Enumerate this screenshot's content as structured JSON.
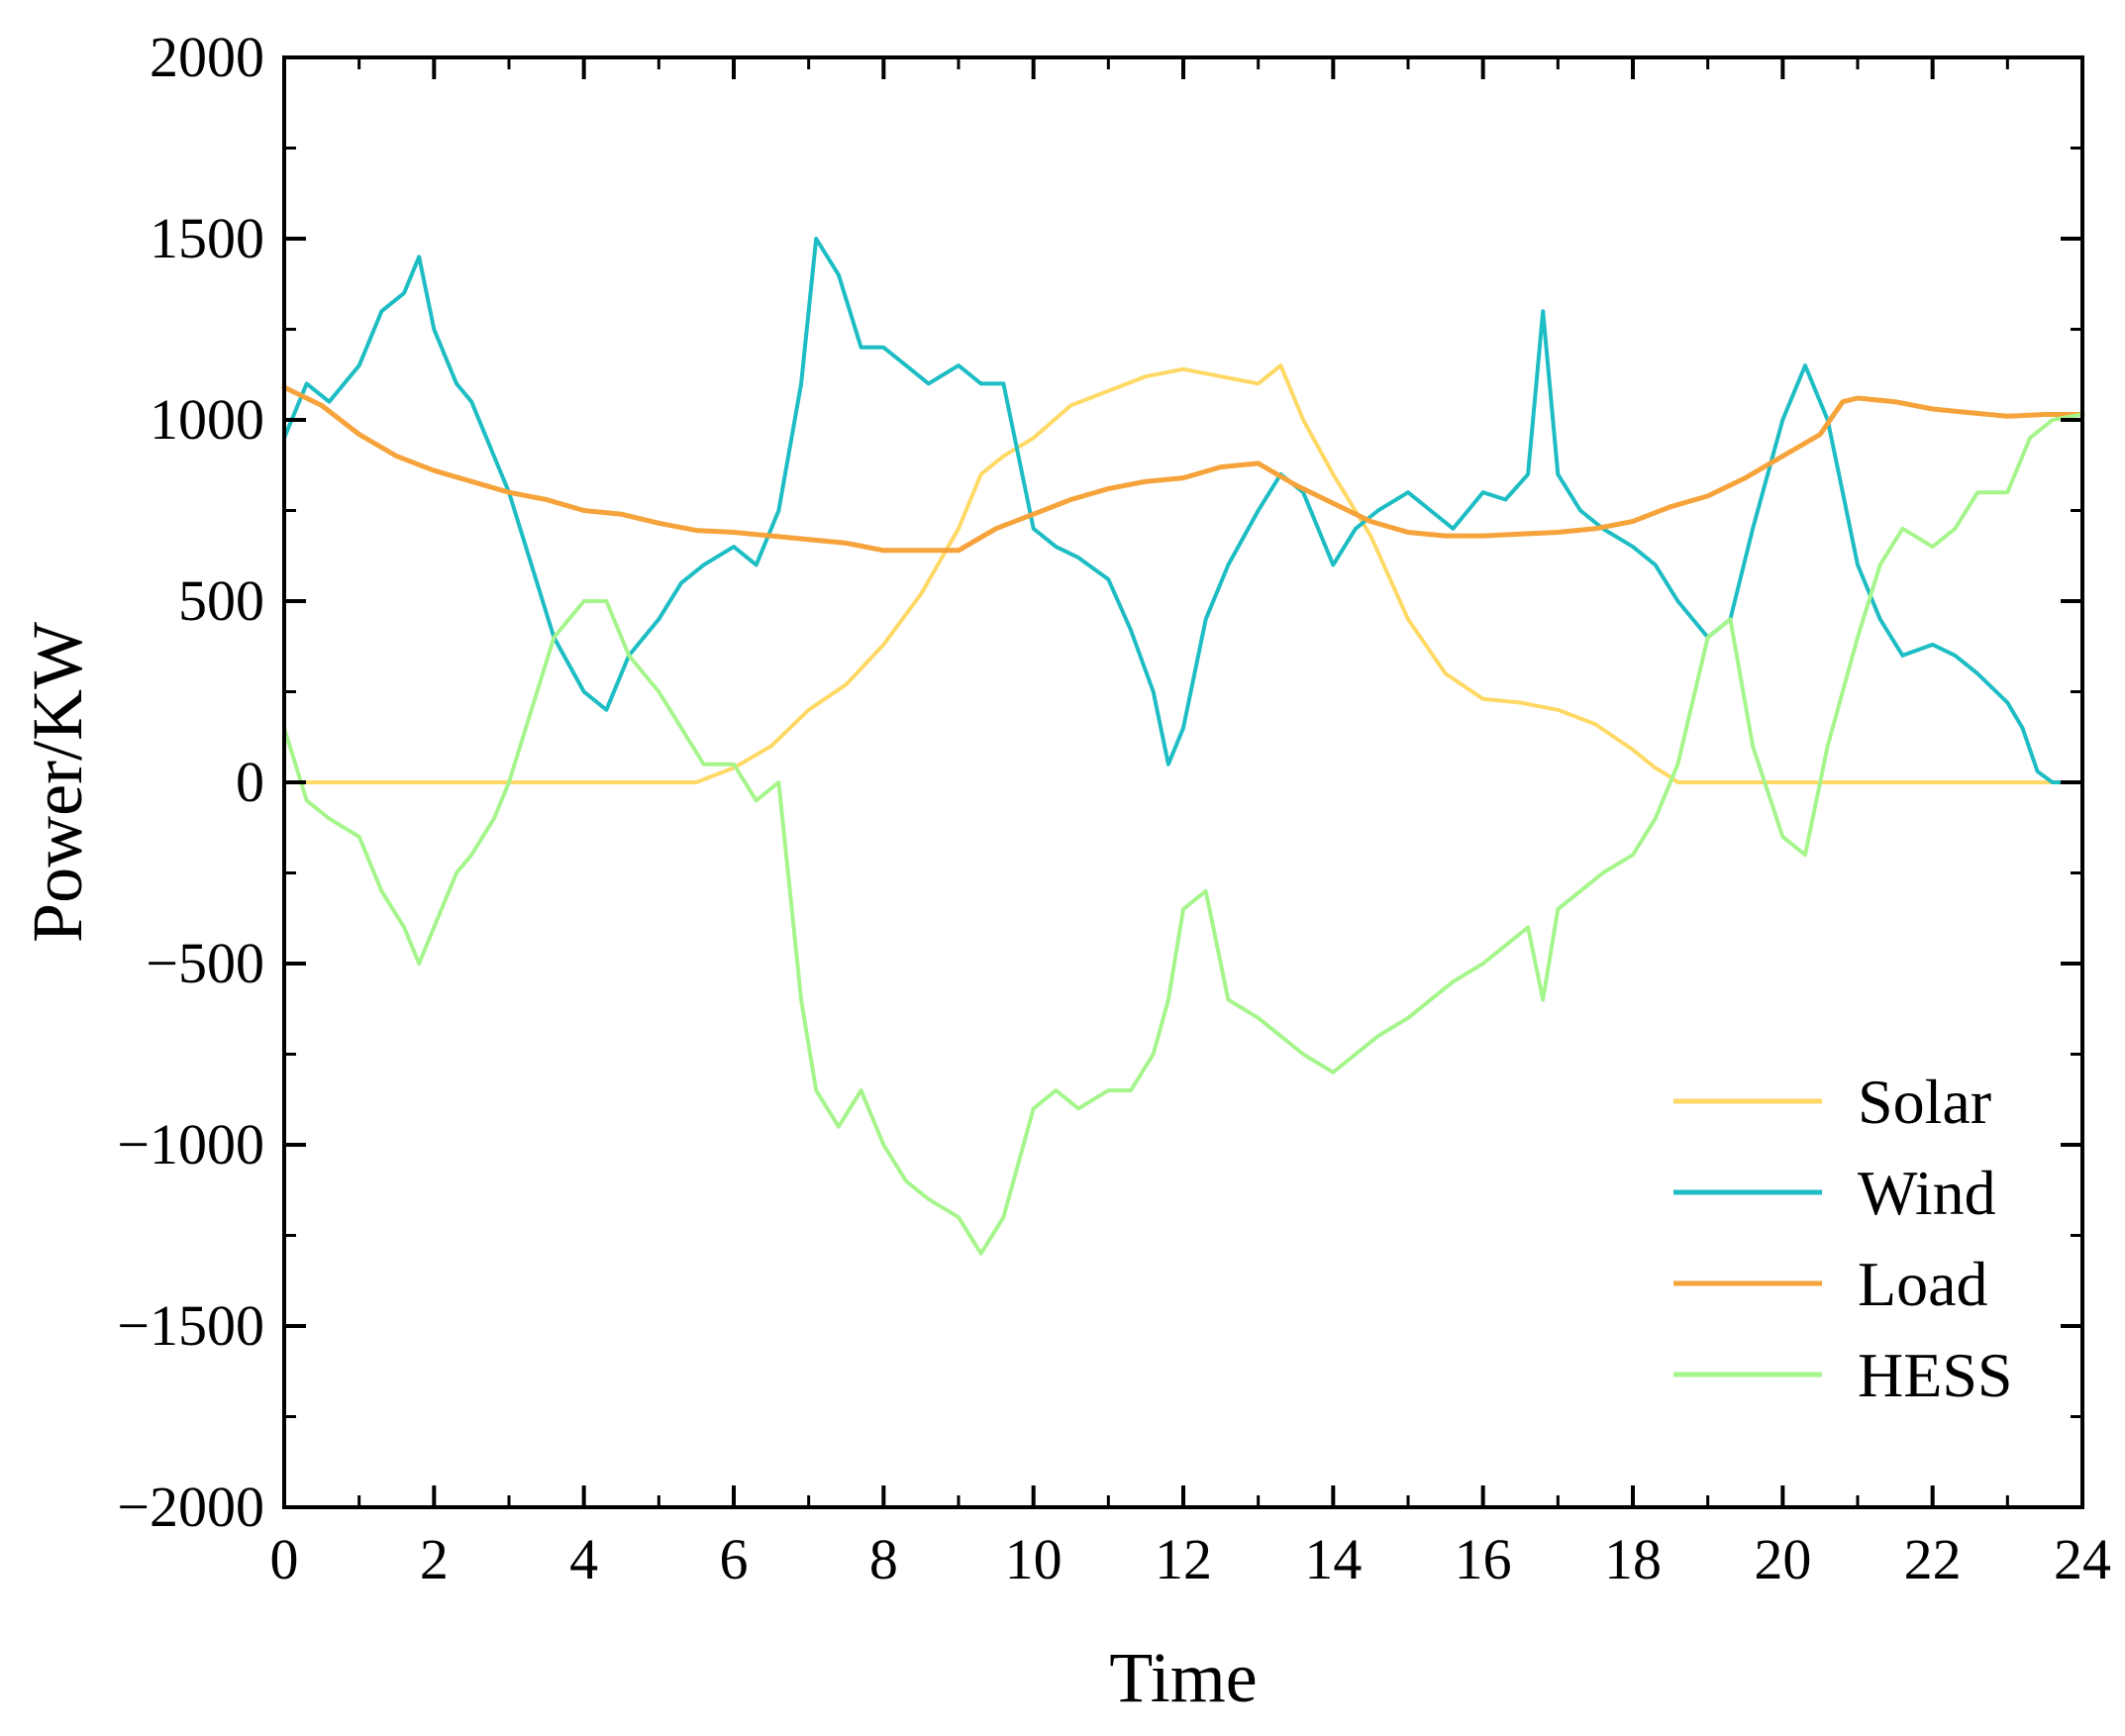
{
  "chart_data": {
    "type": "line",
    "title": "",
    "xlabel": "Time",
    "ylabel": "Power/KW",
    "xlim": [
      0,
      24
    ],
    "ylim": [
      -2000,
      2000
    ],
    "xticks": [
      0,
      2,
      4,
      6,
      8,
      10,
      12,
      14,
      16,
      18,
      20,
      22,
      24
    ],
    "xtick_labels": [
      "0",
      "2",
      "4",
      "6",
      "8",
      "10",
      "12",
      "14",
      "16",
      "18",
      "20",
      "22",
      "24"
    ],
    "yticks": [
      -2000,
      -1500,
      -1000,
      -500,
      0,
      500,
      1000,
      1500,
      2000
    ],
    "ytick_labels": [
      "−2000",
      "−1500",
      "−1000",
      "−500",
      "0",
      "500",
      "1000",
      "1500",
      "2000"
    ],
    "grid": false,
    "legend_position": "bottom-right",
    "series": [
      {
        "name": "Solar",
        "color": "#FFD966",
        "x": [
          0,
          1,
          2,
          3,
          4,
          5,
          5.5,
          6,
          6.5,
          7,
          7.5,
          8,
          8.5,
          9,
          9.3,
          9.6,
          10,
          10.5,
          11,
          11.5,
          12,
          12.5,
          13,
          13.3,
          13.6,
          14,
          14.5,
          15,
          15.5,
          16,
          16.5,
          17,
          17.5,
          18,
          18.3,
          18.5,
          18.6,
          19,
          20,
          21,
          22,
          23,
          24
        ],
        "y": [
          0,
          0,
          0,
          0,
          0,
          0,
          0,
          40,
          100,
          200,
          270,
          380,
          520,
          700,
          850,
          900,
          950,
          1040,
          1080,
          1120,
          1140,
          1120,
          1100,
          1150,
          1000,
          850,
          680,
          450,
          300,
          230,
          220,
          200,
          160,
          90,
          40,
          15,
          0,
          0,
          0,
          0,
          0,
          0,
          0
        ]
      },
      {
        "name": "Wind",
        "color": "#1EBDC4",
        "x": [
          0,
          0.3,
          0.6,
          1,
          1.3,
          1.6,
          1.8,
          2,
          2.3,
          2.5,
          2.8,
          3,
          3.3,
          3.6,
          4,
          4.3,
          4.6,
          5,
          5.3,
          5.6,
          6,
          6.3,
          6.6,
          6.9,
          7.1,
          7.4,
          7.7,
          8,
          8.3,
          8.6,
          9,
          9.3,
          9.6,
          10,
          10.3,
          10.6,
          11,
          11.3,
          11.6,
          11.8,
          12,
          12.3,
          12.6,
          13,
          13.3,
          13.6,
          14,
          14.3,
          14.6,
          15,
          15.3,
          15.6,
          16,
          16.3,
          16.6,
          16.8,
          17,
          17.3,
          17.6,
          18,
          18.3,
          18.6,
          19,
          19.3,
          19.6,
          20,
          20.3,
          20.6,
          20.8,
          21,
          21.3,
          21.6,
          22,
          22.3,
          22.6,
          23,
          23.2,
          23.4,
          23.6,
          24
        ],
        "y": [
          950,
          1100,
          1050,
          1150,
          1300,
          1350,
          1450,
          1250,
          1100,
          1050,
          900,
          800,
          600,
          400,
          250,
          200,
          350,
          450,
          550,
          600,
          650,
          600,
          750,
          1100,
          1500,
          1400,
          1200,
          1200,
          1150,
          1100,
          1150,
          1100,
          1100,
          700,
          650,
          620,
          560,
          420,
          250,
          50,
          150,
          450,
          600,
          750,
          850,
          800,
          600,
          700,
          750,
          800,
          750,
          700,
          800,
          780,
          850,
          1300,
          850,
          750,
          700,
          650,
          600,
          500,
          400,
          450,
          700,
          1000,
          1150,
          1000,
          800,
          600,
          450,
          350,
          380,
          350,
          300,
          220,
          150,
          30,
          0,
          0
        ]
      },
      {
        "name": "Load",
        "color": "#F5A33A",
        "x": [
          0,
          0.5,
          1,
          1.5,
          2,
          2.5,
          3,
          3.5,
          4,
          4.5,
          5,
          5.5,
          6,
          6.5,
          7,
          7.5,
          8,
          8.5,
          9,
          9.5,
          10,
          10.5,
          11,
          11.5,
          12,
          12.5,
          13,
          13.5,
          14,
          14.5,
          15,
          15.5,
          16,
          16.5,
          17,
          17.5,
          18,
          18.5,
          19,
          19.5,
          20,
          20.5,
          20.8,
          21,
          21.5,
          22,
          22.5,
          23,
          23.5,
          24
        ],
        "y": [
          1090,
          1040,
          960,
          900,
          860,
          830,
          800,
          780,
          750,
          740,
          715,
          695,
          690,
          680,
          670,
          660,
          640,
          640,
          640,
          700,
          740,
          780,
          810,
          830,
          840,
          870,
          880,
          820,
          770,
          720,
          690,
          680,
          680,
          685,
          690,
          700,
          720,
          760,
          790,
          840,
          900,
          960,
          1050,
          1060,
          1050,
          1030,
          1020,
          1010,
          1015,
          1015
        ]
      },
      {
        "name": "HESS",
        "color": "#A6F58C",
        "x": [
          0,
          0.3,
          0.6,
          1,
          1.3,
          1.6,
          1.8,
          2,
          2.3,
          2.5,
          2.8,
          3,
          3.3,
          3.6,
          4,
          4.3,
          4.6,
          5,
          5.3,
          5.6,
          6,
          6.3,
          6.6,
          6.9,
          7.1,
          7.4,
          7.7,
          8,
          8.3,
          8.6,
          9,
          9.3,
          9.6,
          10,
          10.3,
          10.6,
          11,
          11.3,
          11.6,
          11.8,
          12,
          12.3,
          12.6,
          13,
          13.3,
          13.6,
          14,
          14.3,
          14.6,
          15,
          15.3,
          15.6,
          16,
          16.3,
          16.6,
          16.8,
          17,
          17.3,
          17.6,
          18,
          18.3,
          18.6,
          19,
          19.3,
          19.6,
          20,
          20.3,
          20.6,
          21,
          21.3,
          21.6,
          22,
          22.3,
          22.6,
          23,
          23.3,
          23.6,
          24
        ],
        "y": [
          150,
          -50,
          -100,
          -150,
          -300,
          -400,
          -500,
          -400,
          -250,
          -200,
          -100,
          0,
          200,
          400,
          500,
          500,
          350,
          250,
          150,
          50,
          50,
          -50,
          0,
          -600,
          -850,
          -950,
          -850,
          -1000,
          -1100,
          -1150,
          -1200,
          -1300,
          -1200,
          -900,
          -850,
          -900,
          -850,
          -850,
          -750,
          -600,
          -350,
          -300,
          -600,
          -650,
          -700,
          -750,
          -800,
          -750,
          -700,
          -650,
          -600,
          -550,
          -500,
          -450,
          -400,
          -600,
          -350,
          -300,
          -250,
          -200,
          -100,
          50,
          400,
          450,
          100,
          -150,
          -200,
          100,
          400,
          600,
          700,
          650,
          700,
          800,
          800,
          950,
          1000,
          1015
        ]
      }
    ]
  }
}
